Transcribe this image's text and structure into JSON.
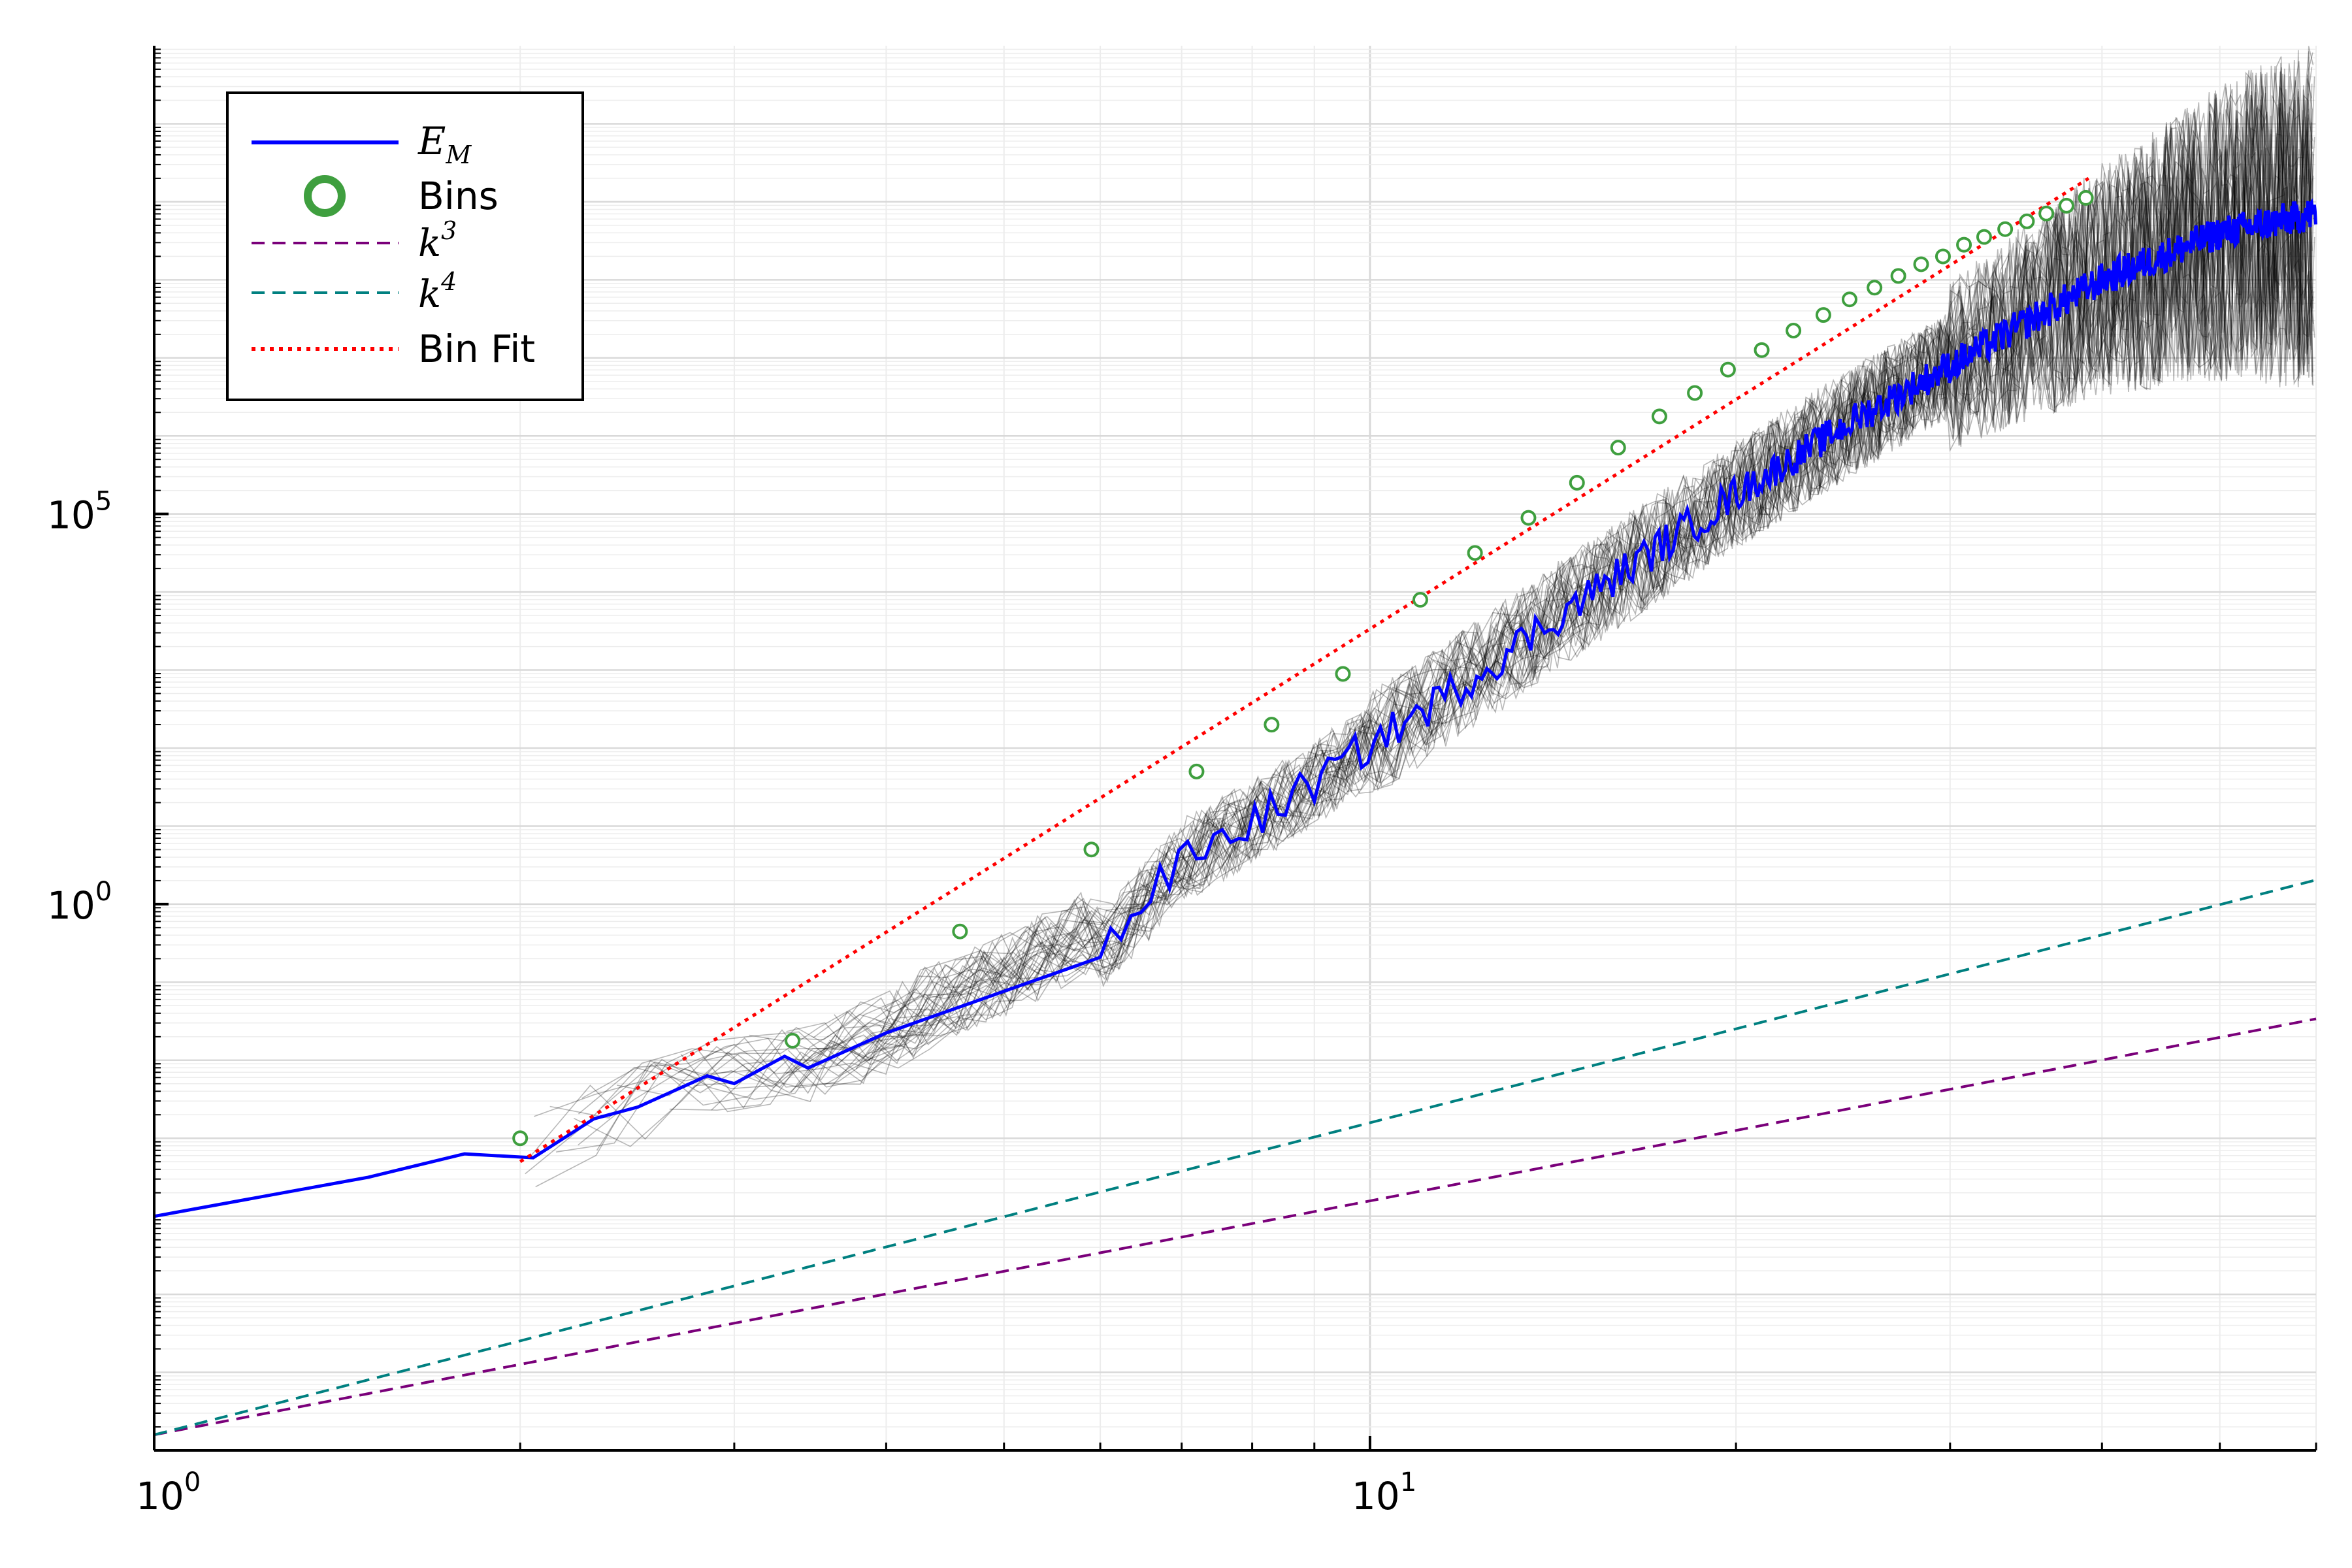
{
  "chart_data": {
    "type": "line",
    "title": "",
    "xlabel": "",
    "ylabel": "",
    "x_scale": "log10",
    "y_scale": "log10",
    "xlim": [
      1,
      60
    ],
    "ylim_log10_exponent": [
      -7,
      11
    ],
    "grid": true,
    "minor_grid": true,
    "legend_position": "top-left",
    "x_ticks": [
      {
        "value": 1,
        "base": "10",
        "exp": "0"
      },
      {
        "value": 10,
        "base": "10",
        "exp": "1"
      }
    ],
    "y_ticks": [
      {
        "log10": 0,
        "base": "10",
        "exp": "0"
      },
      {
        "log10": 5,
        "base": "10",
        "exp": "5"
      }
    ],
    "series": [
      {
        "name": "E_M",
        "label_main": "E",
        "label_sub": "M",
        "style": "solid",
        "color": "#0000ff",
        "note": "approximately follows Bin Fit from x=2 onward with noisy fluctuation",
        "x": [
          1,
          1.5,
          1.8,
          2.05,
          2.3,
          2.5,
          2.85,
          3.0,
          3.3,
          3.45,
          4.0,
          4.3,
          4.6,
          5.0,
          5.5,
          5.85,
          6.0,
          7.0,
          8.0,
          9.0,
          10.0,
          11.0,
          12.0,
          14.0,
          17.0,
          20.0,
          25.0,
          30.0,
          40.0,
          50.0,
          60.0
        ],
        "y_log10": [
          -4.0,
          -3.5,
          -3.2,
          -3.25,
          -2.75,
          -2.6,
          -2.2,
          -2.3,
          -1.95,
          -2.1,
          -1.65,
          -1.35,
          -1.2,
          -0.9,
          -0.6,
          -0.35,
          -0.6,
          0.55,
          1.05,
          1.55,
          2.05,
          2.45,
          2.85,
          3.6,
          4.5,
          5.25,
          6.2,
          6.9,
          8.0,
          8.6,
          8.85
        ]
      },
      {
        "name": "Bins",
        "style": "marker-circle",
        "color": "#3f9f3f",
        "x": [
          2.0,
          3.35,
          4.6,
          5.9,
          7.2,
          8.3,
          9.5,
          11.0,
          12.2,
          13.5,
          14.8,
          16.0,
          17.3,
          18.5,
          19.7,
          21.0,
          22.3,
          23.6,
          24.8,
          26.0,
          27.2,
          28.4,
          29.6,
          30.8,
          32.0,
          33.3,
          34.7,
          36.0,
          37.4,
          38.8
        ],
        "y_log10": [
          -3.0,
          -1.75,
          -0.35,
          0.7,
          1.7,
          2.3,
          2.95,
          3.9,
          4.5,
          4.95,
          5.4,
          5.85,
          6.25,
          6.55,
          6.85,
          7.1,
          7.35,
          7.55,
          7.75,
          7.9,
          8.05,
          8.2,
          8.3,
          8.45,
          8.55,
          8.65,
          8.75,
          8.85,
          8.95,
          9.05
        ]
      },
      {
        "name": "k^3",
        "label_main": "k",
        "label_sup": "3",
        "style": "dashed",
        "color": "#7a007a",
        "x": [
          1,
          60
        ],
        "y_log10": [
          -6.8,
          -1.47
        ]
      },
      {
        "name": "k^4",
        "label_main": "k",
        "label_sup": "4",
        "style": "dashed",
        "color": "#008080",
        "x": [
          1,
          60
        ],
        "y_log10": [
          -6.8,
          0.31
        ]
      },
      {
        "name": "Bin Fit",
        "style": "dotted",
        "color": "#ff0000",
        "x": [
          2.0,
          39.0
        ],
        "y_log10": [
          -3.3,
          9.3
        ]
      }
    ],
    "legend": [
      {
        "series": "E_M"
      },
      {
        "series": "Bins"
      },
      {
        "series": "k^3"
      },
      {
        "series": "k^4"
      },
      {
        "series": "Bin Fit",
        "text": "Bin Fit"
      }
    ],
    "legend_bins_text": "Bins",
    "ensemble_traces": {
      "count": 40,
      "color": "#000000",
      "description_present_in_plot": true
    }
  }
}
